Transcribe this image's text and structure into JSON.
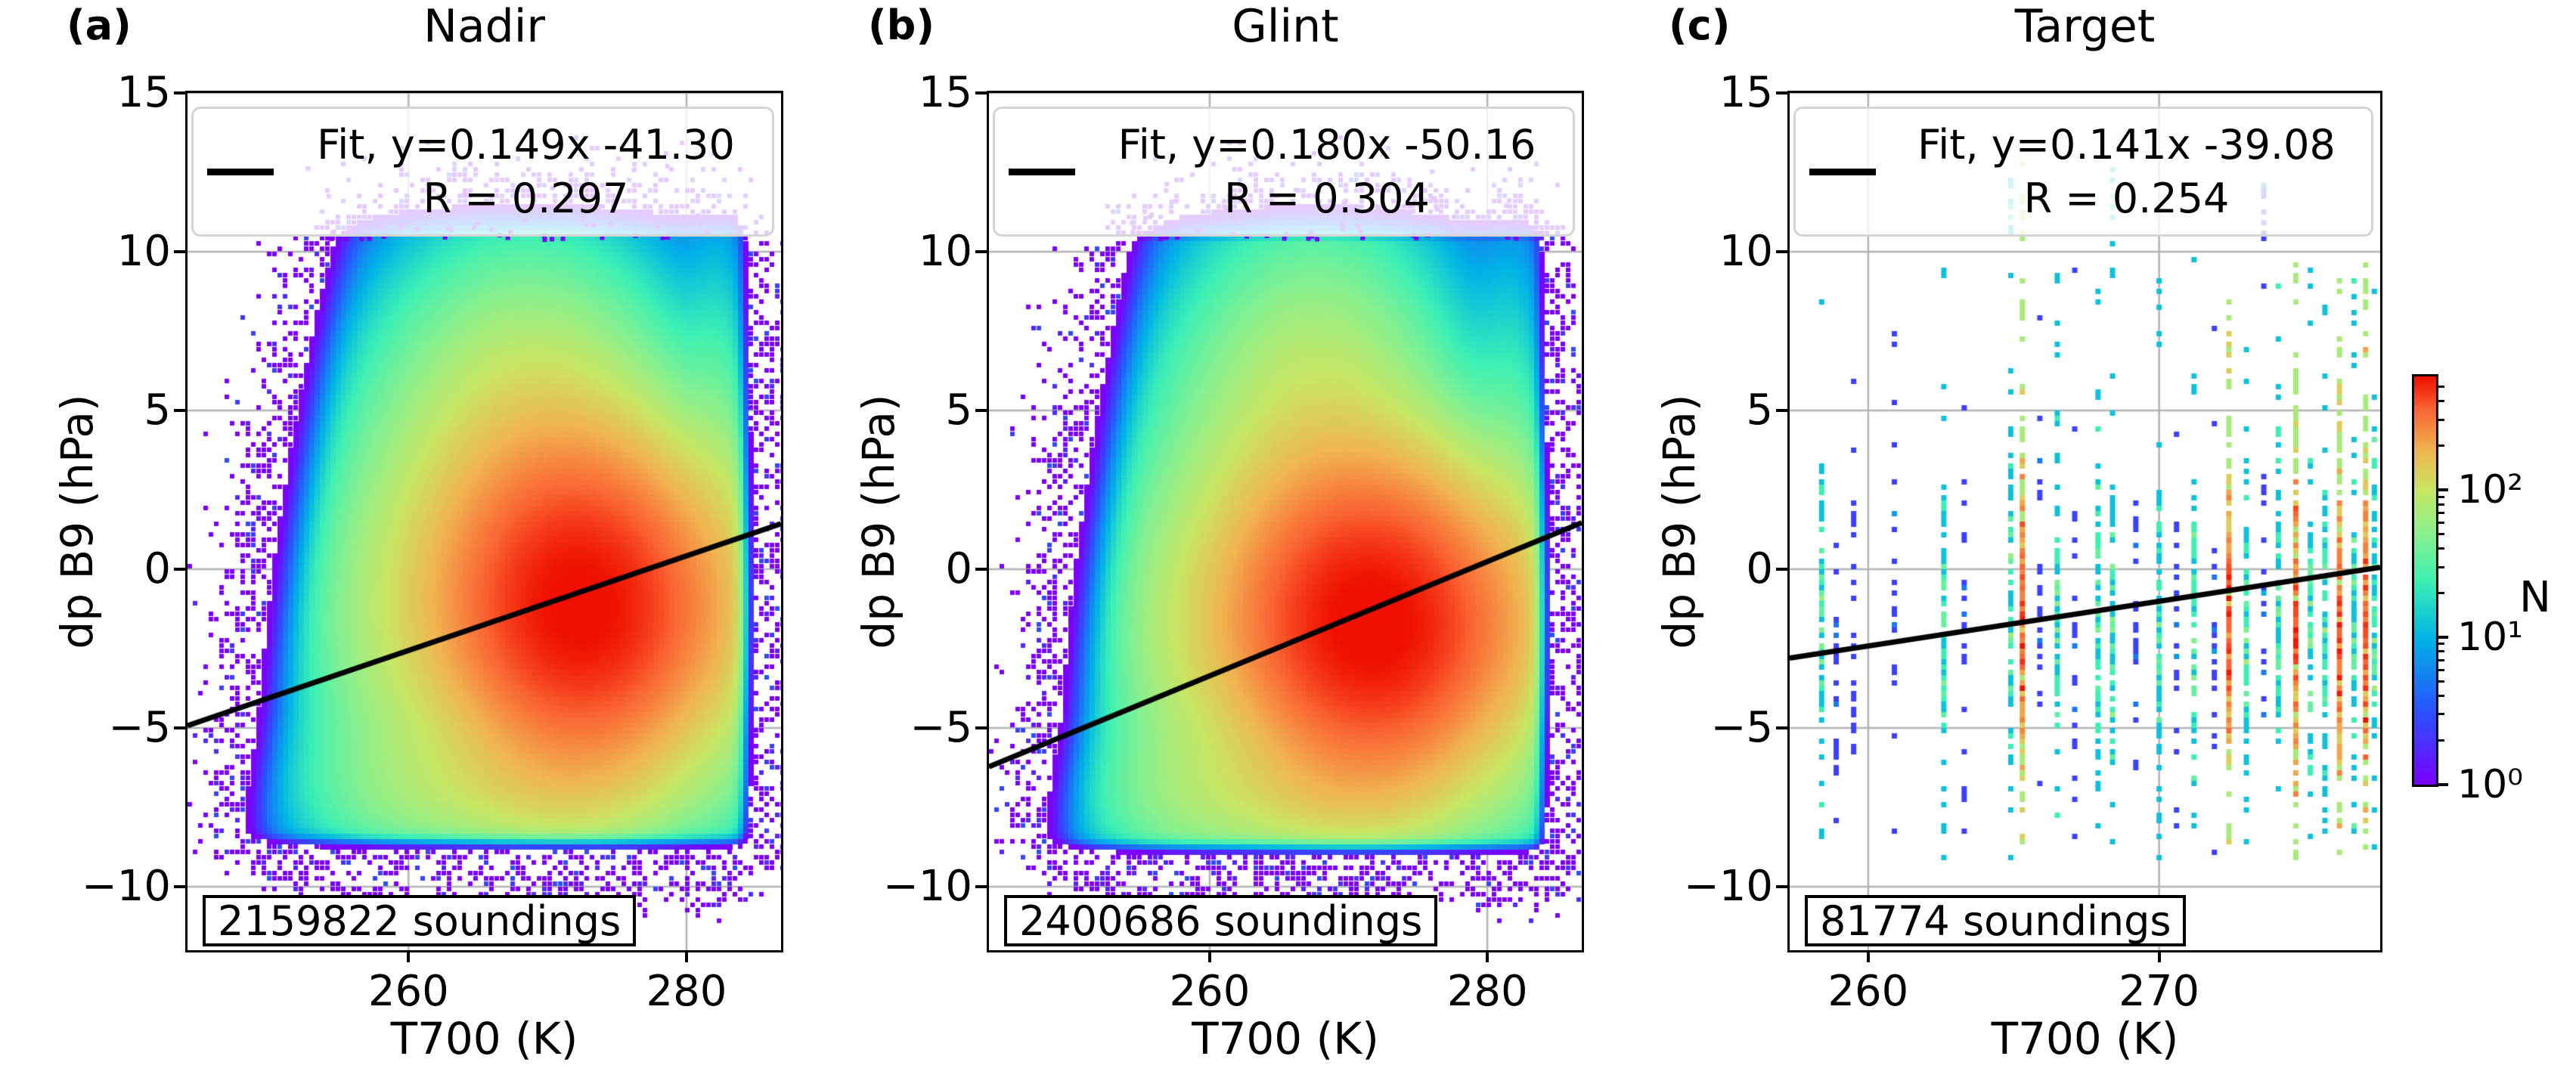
{
  "axis": {
    "xlabel": "T700 (K)",
    "ylabel": "dp B9 (hPa)",
    "ylim": [
      -12,
      15
    ],
    "yticks": [
      15,
      10,
      5,
      0,
      -5,
      -10
    ],
    "ytick_labels": [
      "15",
      "10",
      "5",
      "0",
      "−5",
      "−10"
    ]
  },
  "panels": [
    {
      "letter": "(a)",
      "title": "Nadir",
      "legend": {
        "line1": "Fit, y=0.149x -41.30",
        "line2": "R = 0.297"
      },
      "soundings_label": "2159822 soundings",
      "xlim": [
        244.1,
        286.8
      ],
      "xticks": [
        260,
        280
      ],
      "xtick_labels": [
        "260",
        "280"
      ]
    },
    {
      "letter": "(b)",
      "title": "Glint",
      "legend": {
        "line1": "Fit, y=0.180x -50.16",
        "line2": "R = 0.304"
      },
      "soundings_label": "2400686 soundings",
      "xlim": [
        244.1,
        286.8
      ],
      "xticks": [
        260,
        280
      ],
      "xtick_labels": [
        "260",
        "280"
      ]
    },
    {
      "letter": "(c)",
      "title": "Target",
      "legend": {
        "line1": "Fit, y=0.141x -39.08",
        "line2": "R = 0.254"
      },
      "soundings_label": "81774 soundings",
      "xlim": [
        257.3,
        277.6
      ],
      "xticks": [
        260,
        270
      ],
      "xtick_labels": [
        "260",
        "270"
      ]
    }
  ],
  "colorbar": {
    "label": "N",
    "scale": "log",
    "tick_values": [
      100,
      10,
      1
    ],
    "tick_labels": [
      "10²",
      "10¹",
      "10⁰"
    ],
    "minor_tick_values": [
      2,
      3,
      4,
      5,
      6,
      7,
      8,
      9,
      20,
      30,
      40,
      50,
      60,
      70,
      80,
      90,
      200,
      300,
      400,
      500
    ],
    "vmax_log10": 2.77,
    "colormap_stops": [
      [
        0.0,
        123,
        0,
        255
      ],
      [
        0.18,
        42,
        82,
        255
      ],
      [
        0.36,
        0,
        180,
        230
      ],
      [
        0.5,
        60,
        240,
        180
      ],
      [
        0.62,
        140,
        240,
        140
      ],
      [
        0.72,
        200,
        230,
        100
      ],
      [
        0.82,
        240,
        180,
        80
      ],
      [
        0.92,
        250,
        100,
        50
      ],
      [
        1.0,
        240,
        16,
        0
      ]
    ],
    "grid_color": "#b3b3b3"
  },
  "chart_data": [
    {
      "type": "heatmap",
      "title": "Nadir",
      "xlabel": "T700 (K)",
      "ylabel": "dp B9 (hPa)",
      "xlim": [
        244.1,
        286.8
      ],
      "ylim": [
        -12,
        15
      ],
      "xticks": [
        260,
        280
      ],
      "yticks": [
        15,
        10,
        5,
        0,
        -5,
        -10
      ],
      "n_soundings": 2159822,
      "fit": {
        "slope": 0.149,
        "intercept": -41.3
      },
      "correlation_R": 0.297,
      "count_scale": "log",
      "count_range": [
        1,
        590
      ],
      "colormap": "rainbow",
      "legend_position": "upper center",
      "grid": true,
      "density_components": [
        [
          600,
          272.5,
          6.2,
          -1.3,
          3.1
        ],
        [
          90,
          268.5,
          6.5,
          4.5,
          3.6
        ],
        [
          45,
          258.5,
          4.5,
          -2.0,
          4.2
        ],
        [
          55,
          268.0,
          8.5,
          -7.1,
          1.4
        ],
        [
          25,
          282.5,
          1.6,
          1.0,
          5.5
        ],
        [
          6,
          268.0,
          11.0,
          1.0,
          5.5
        ]
      ],
      "cutoffs": {
        "bottom": -8.45,
        "right": 283.9,
        "left_base": 249.6,
        "left_slope": 0.33,
        "top_soft": 10.45
      }
    },
    {
      "type": "heatmap",
      "title": "Glint",
      "xlabel": "T700 (K)",
      "ylabel": "dp B9 (hPa)",
      "xlim": [
        244.1,
        286.8
      ],
      "ylim": [
        -12,
        15
      ],
      "xticks": [
        260,
        280
      ],
      "yticks": [
        15,
        10,
        5,
        0,
        -5,
        -10
      ],
      "n_soundings": 2400686,
      "fit": {
        "slope": 0.18,
        "intercept": -50.16
      },
      "correlation_R": 0.304,
      "count_scale": "log",
      "count_range": [
        1,
        590
      ],
      "colormap": "rainbow",
      "legend_position": "upper center",
      "grid": true,
      "density_components": [
        [
          620,
          271.8,
          6.4,
          -1.8,
          3.0
        ],
        [
          85,
          267.5,
          6.0,
          4.8,
          3.8
        ],
        [
          40,
          257.5,
          4.0,
          -2.5,
          4.5
        ],
        [
          60,
          267.0,
          8.5,
          -7.3,
          1.4
        ],
        [
          25,
          282.0,
          1.8,
          0.5,
          5.5
        ],
        [
          6,
          267.0,
          11.0,
          0.5,
          5.8
        ]
      ],
      "cutoffs": {
        "bottom": -8.6,
        "right": 283.6,
        "left_base": 249.9,
        "left_slope": 0.3,
        "top_soft": 10.3
      }
    },
    {
      "type": "scatter",
      "title": "Target",
      "xlabel": "T700 (K)",
      "ylabel": "dp B9 (hPa)",
      "xlim": [
        257.3,
        277.6
      ],
      "ylim": [
        -12,
        15
      ],
      "xticks": [
        260,
        270
      ],
      "yticks": [
        15,
        10,
        5,
        0,
        -5,
        -10
      ],
      "n_soundings": 81774,
      "fit": {
        "slope": 0.141,
        "intercept": -39.08
      },
      "correlation_R": 0.254,
      "count_scale": "log",
      "count_range": [
        1,
        590
      ],
      "colormap": "rainbow",
      "legend_position": "upper center",
      "grid": true,
      "stripes": [
        [
          258.4,
          2,
          0
        ],
        [
          258.9,
          1,
          0
        ],
        [
          259.5,
          1,
          0
        ],
        [
          260.9,
          1,
          0
        ],
        [
          262.6,
          2,
          0
        ],
        [
          263.3,
          1,
          0
        ],
        [
          264.9,
          2,
          1
        ],
        [
          265.3,
          3,
          1
        ],
        [
          265.9,
          1,
          0
        ],
        [
          266.5,
          2,
          0
        ],
        [
          267.1,
          1,
          0
        ],
        [
          267.9,
          2,
          0
        ],
        [
          268.4,
          2,
          1
        ],
        [
          269.2,
          1,
          0
        ],
        [
          270.0,
          2,
          0
        ],
        [
          270.6,
          1,
          0
        ],
        [
          271.2,
          2,
          0
        ],
        [
          271.9,
          1,
          0
        ],
        [
          272.4,
          3,
          0
        ],
        [
          273.0,
          2,
          0
        ],
        [
          273.6,
          1,
          1
        ],
        [
          274.1,
          2,
          0
        ],
        [
          274.7,
          3,
          0
        ],
        [
          275.2,
          2,
          0
        ],
        [
          275.7,
          2,
          0
        ],
        [
          276.2,
          3,
          0
        ],
        [
          276.7,
          2,
          0
        ],
        [
          277.1,
          3,
          0
        ],
        [
          277.4,
          2,
          0
        ]
      ]
    }
  ]
}
